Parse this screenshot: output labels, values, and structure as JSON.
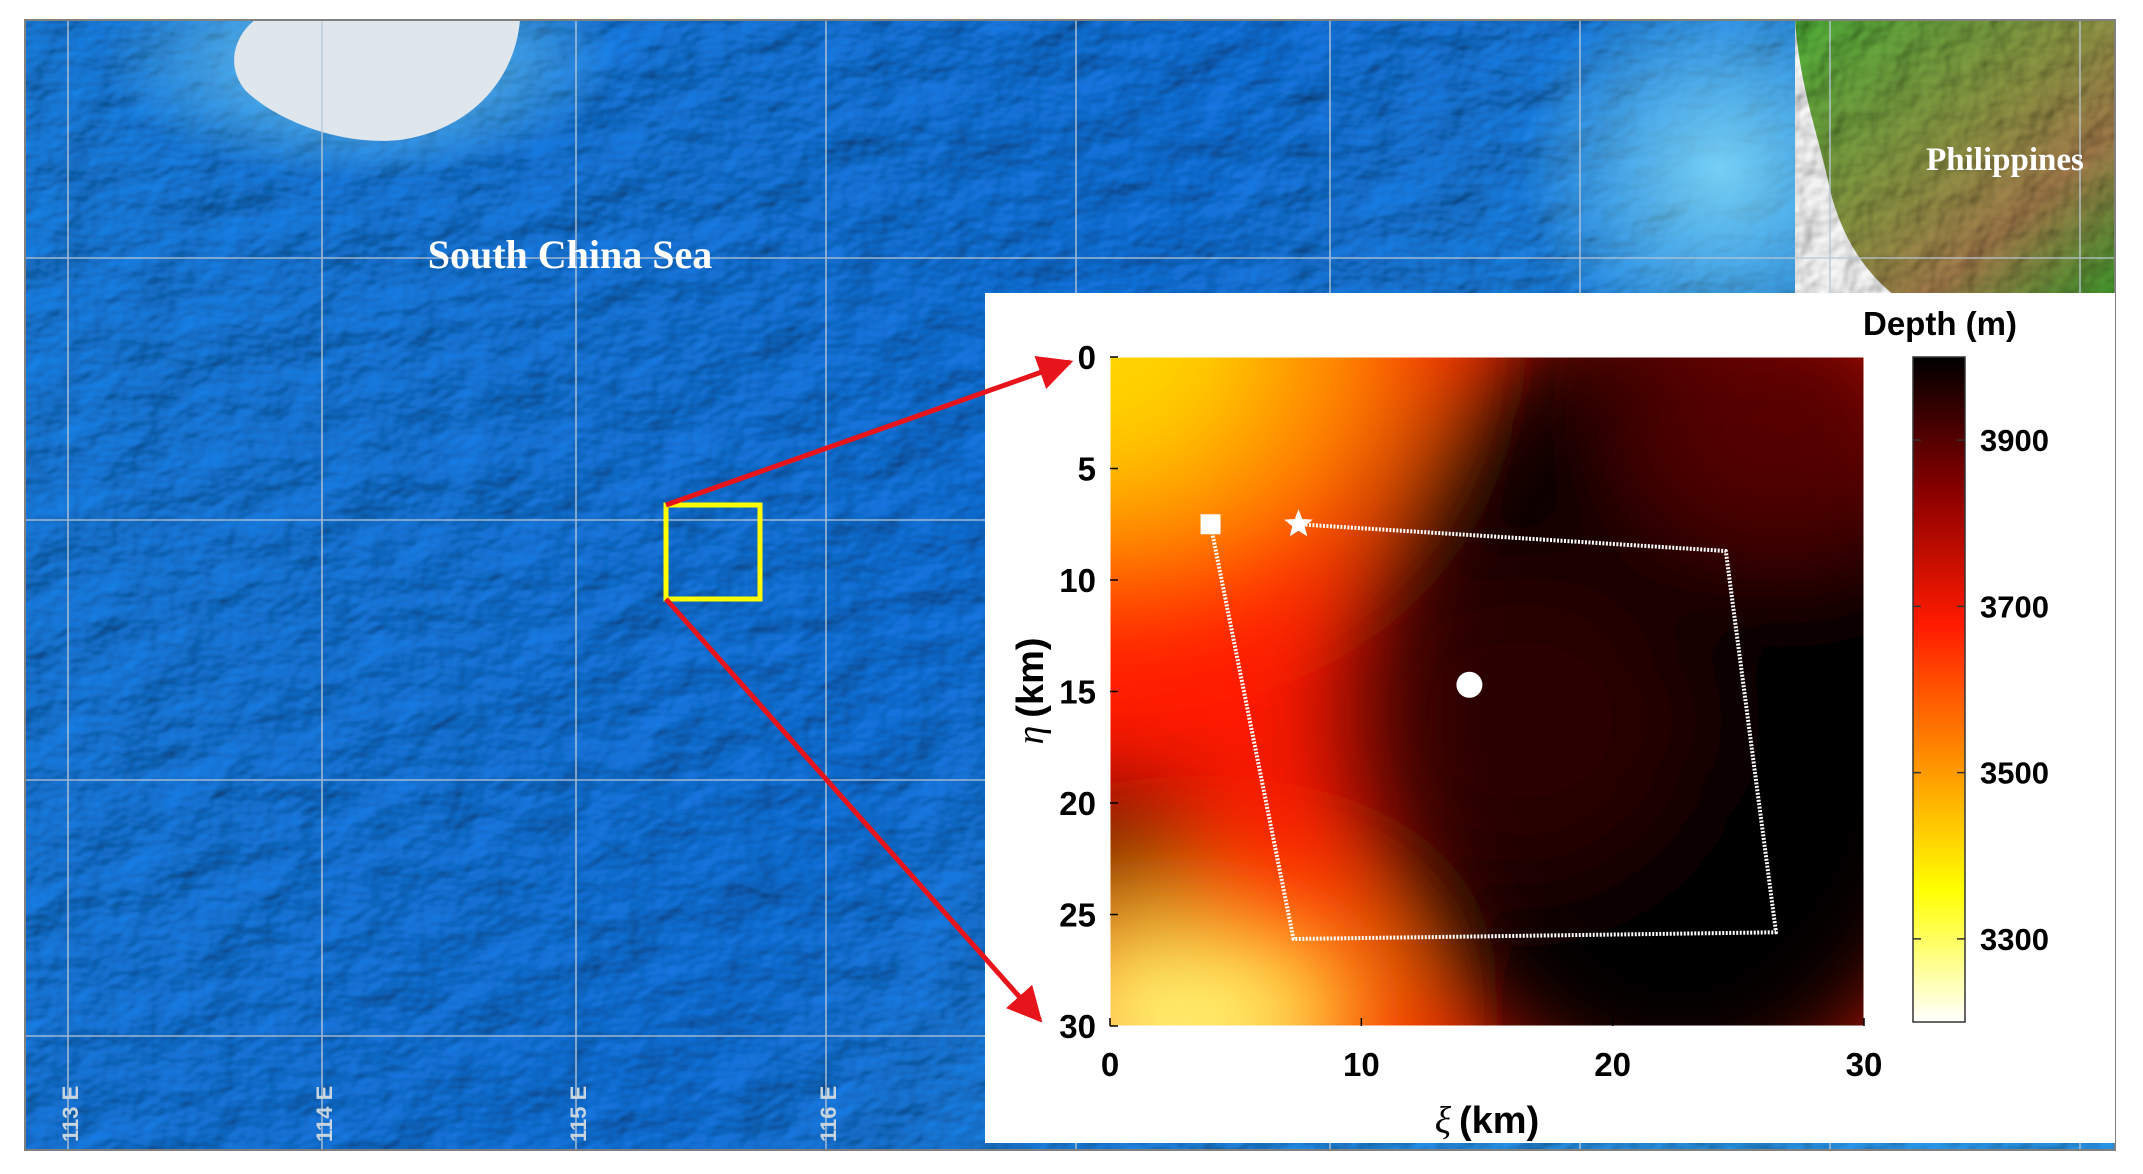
{
  "map": {
    "labels": {
      "sea": "South China Sea",
      "country": "Philippines"
    },
    "longitude_labels": [
      "113 E",
      "114 E",
      "115 E",
      "116 E"
    ],
    "colors": {
      "ocean_deep": "#0a5fd0",
      "ocean_mid": "#1f8ff0",
      "ocean_shallow": "#55c6f6",
      "land_green": "#3aa12d",
      "land_brown": "#a77f4d",
      "grid": "#b9c6d6",
      "highlight_box": "#ffff00",
      "arrow": "#e8141b"
    }
  },
  "inset": {
    "colorbar": {
      "title": "Depth (m)",
      "ticks": [
        "3900",
        "3700",
        "3500",
        "3300"
      ],
      "range": [
        3200,
        4000
      ]
    },
    "axes": {
      "xlabel_symbol": "ξ",
      "xlabel_unit": "(km)",
      "ylabel_symbol": "η",
      "ylabel_unit": "(km)",
      "xticks": [
        "0",
        "10",
        "20",
        "30"
      ],
      "yticks": [
        "0",
        "5",
        "10",
        "15",
        "20",
        "25",
        "30"
      ],
      "xlim": [
        0,
        30
      ],
      "ylim": [
        0,
        30
      ]
    },
    "markers": [
      {
        "name": "square",
        "xi": 4.0,
        "eta": 7.5
      },
      {
        "name": "star",
        "xi": 7.5,
        "eta": 7.5
      },
      {
        "name": "circle",
        "xi": 14.3,
        "eta": 14.7
      }
    ],
    "track": [
      {
        "xi": 7.5,
        "eta": 7.5
      },
      {
        "xi": 24.5,
        "eta": 8.7
      },
      {
        "xi": 26.5,
        "eta": 25.8
      },
      {
        "xi": 7.3,
        "eta": 26.1
      },
      {
        "xi": 4.0,
        "eta": 7.5
      }
    ]
  }
}
